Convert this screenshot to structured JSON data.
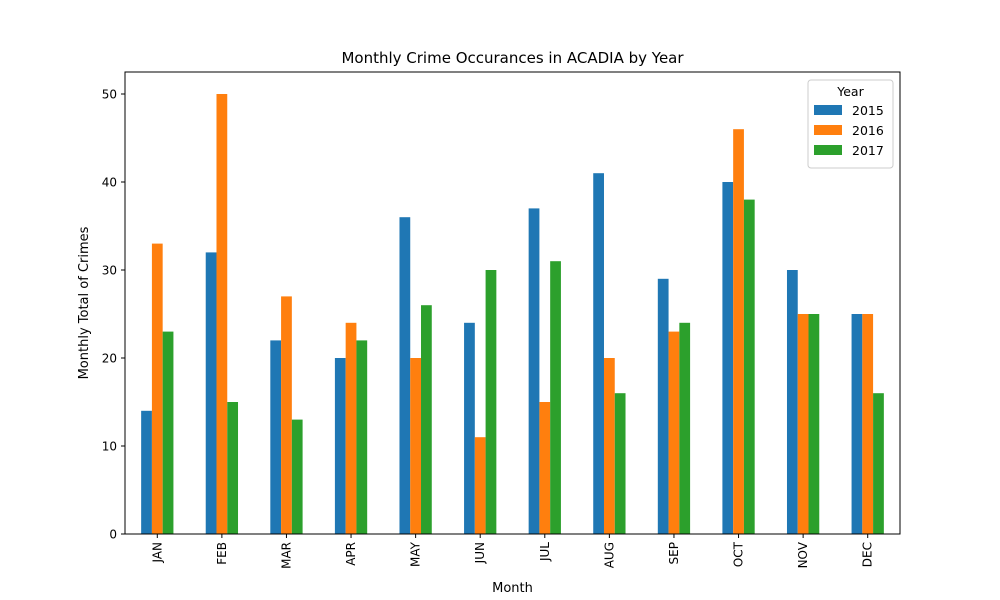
{
  "chart_data": {
    "type": "bar",
    "title": "Monthly Crime Occurances in ACADIA by Year",
    "xlabel": "Month",
    "ylabel": "Monthly Total of Crimes",
    "categories": [
      "JAN",
      "FEB",
      "MAR",
      "APR",
      "MAY",
      "JUN",
      "JUL",
      "AUG",
      "SEP",
      "OCT",
      "NOV",
      "DEC"
    ],
    "ylim": [
      0,
      52.5
    ],
    "yticks": [
      0,
      10,
      20,
      30,
      40,
      50
    ],
    "grid": false,
    "legend": {
      "title": "Year",
      "placement": "top-right"
    },
    "series": [
      {
        "name": "2015",
        "color": "#1f77b4",
        "values": [
          14,
          32,
          22,
          20,
          36,
          24,
          37,
          41,
          29,
          40,
          30,
          25
        ]
      },
      {
        "name": "2016",
        "color": "#ff7f0e",
        "values": [
          33,
          50,
          27,
          24,
          20,
          11,
          15,
          20,
          23,
          46,
          25,
          25
        ]
      },
      {
        "name": "2017",
        "color": "#2ca02c",
        "values": [
          23,
          15,
          13,
          22,
          26,
          30,
          31,
          16,
          24,
          38,
          25,
          16
        ]
      }
    ]
  }
}
